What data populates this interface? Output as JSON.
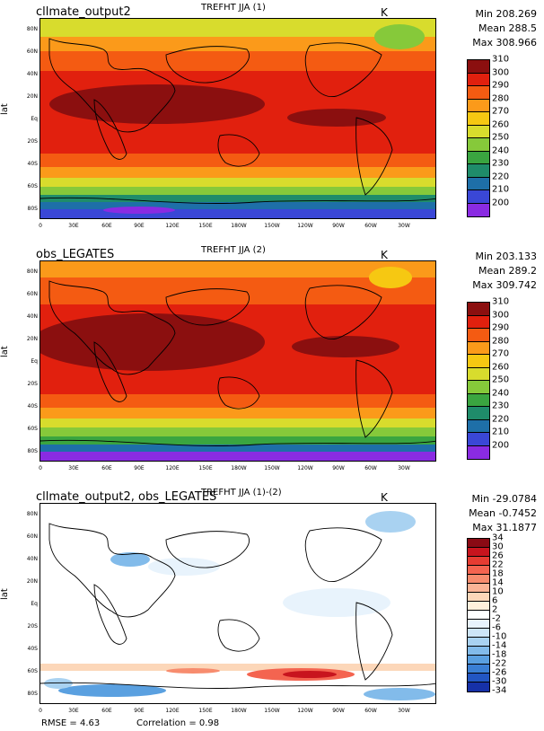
{
  "panels": [
    {
      "case_name": "cllmate_output2",
      "variable_title": "TREFHT JJA (1)",
      "units": "K",
      "stats": {
        "min": "Min 208.269",
        "mean": "Mean 288.5",
        "max": "Max 308.966"
      },
      "ylabel": "lat",
      "colorbar": {
        "labels": [
          "310",
          "300",
          "290",
          "280",
          "270",
          "260",
          "250",
          "240",
          "230",
          "220",
          "210",
          "200"
        ],
        "colors": [
          "#8b0f0f",
          "#e1200e",
          "#f45b12",
          "#fb9a1a",
          "#f6c812",
          "#d8dc2d",
          "#86c93a",
          "#3aa540",
          "#1f8c6a",
          "#1e6fa8",
          "#3a47d6",
          "#8a2be2"
        ]
      }
    },
    {
      "case_name": "obs_LEGATES",
      "variable_title": "TREFHT JJA (2)",
      "units": "K",
      "stats": {
        "min": "Min 203.133",
        "mean": "Mean 289.2",
        "max": "Max 309.742"
      },
      "ylabel": "lat",
      "colorbar": {
        "labels": [
          "310",
          "300",
          "290",
          "280",
          "270",
          "260",
          "250",
          "240",
          "230",
          "220",
          "210",
          "200"
        ],
        "colors": [
          "#8b0f0f",
          "#e1200e",
          "#f45b12",
          "#fb9a1a",
          "#f6c812",
          "#d8dc2d",
          "#86c93a",
          "#3aa540",
          "#1f8c6a",
          "#1e6fa8",
          "#3a47d6",
          "#8a2be2"
        ]
      }
    },
    {
      "case_name": "cllmate_output2, obs_LEGATES",
      "variable_title": "TREFHT JJA (1)-(2)",
      "units": "K",
      "stats": {
        "min": "Min -29.0784",
        "mean": "Mean -0.7452",
        "max": "Max 31.1877"
      },
      "ylabel": "lat",
      "colorbar": {
        "labels": [
          "34",
          "30",
          "26",
          "22",
          "18",
          "14",
          "10",
          "6",
          "2",
          "-2",
          "-6",
          "-10",
          "-14",
          "-18",
          "-22",
          "-26",
          "-30",
          "-34"
        ],
        "colors": [
          "#8a0a14",
          "#c8141e",
          "#e63c32",
          "#f46450",
          "#f78c6e",
          "#fab496",
          "#fcd7b9",
          "#fff0dc",
          "#ffffff",
          "#e8f3fc",
          "#cde5f7",
          "#a9d2f1",
          "#82bbea",
          "#5aa0e0",
          "#3a7fd4",
          "#2256c3",
          "#1631a8"
        ]
      },
      "footer": {
        "rmse": "RMSE = 4.63",
        "correlation": "Correlation = 0.98"
      }
    }
  ],
  "lat_ticks": [
    "80N",
    "60N",
    "40N",
    "20N",
    "Eq",
    "20S",
    "40S",
    "60S",
    "80S"
  ],
  "lon_ticks": [
    "0",
    "30E",
    "60E",
    "90E",
    "120E",
    "150E",
    "180W",
    "150W",
    "120W",
    "90W",
    "60W",
    "30W"
  ]
}
